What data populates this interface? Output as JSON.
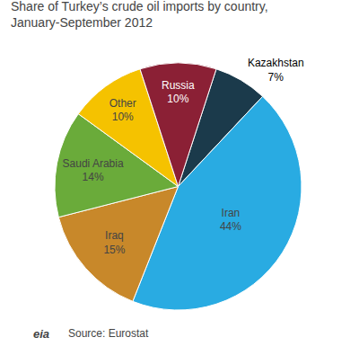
{
  "chart_data": {
    "type": "pie",
    "title": "Share of Turkey’s crude oil imports by country,\nJanuary-September 2012",
    "categories": [
      "Kazakhstan",
      "Iran",
      "Iraq",
      "Saudi Arabia",
      "Other",
      "Russia"
    ],
    "values": [
      7,
      44,
      15,
      14,
      10,
      10
    ],
    "value_labels": [
      "Kazakhstan\n7%",
      "Iran\n44%",
      "Iraq\n15%",
      "Saudi Arabia\n14%",
      "Other\n10%",
      "Russia\n10%"
    ],
    "colors": [
      "#1B3A4B",
      "#29ABE2",
      "#C8882A",
      "#6AAB3A",
      "#F5C200",
      "#8B2035"
    ],
    "data_labels": true,
    "annotations": [
      "eia",
      "Source: Eurostat"
    ]
  }
}
